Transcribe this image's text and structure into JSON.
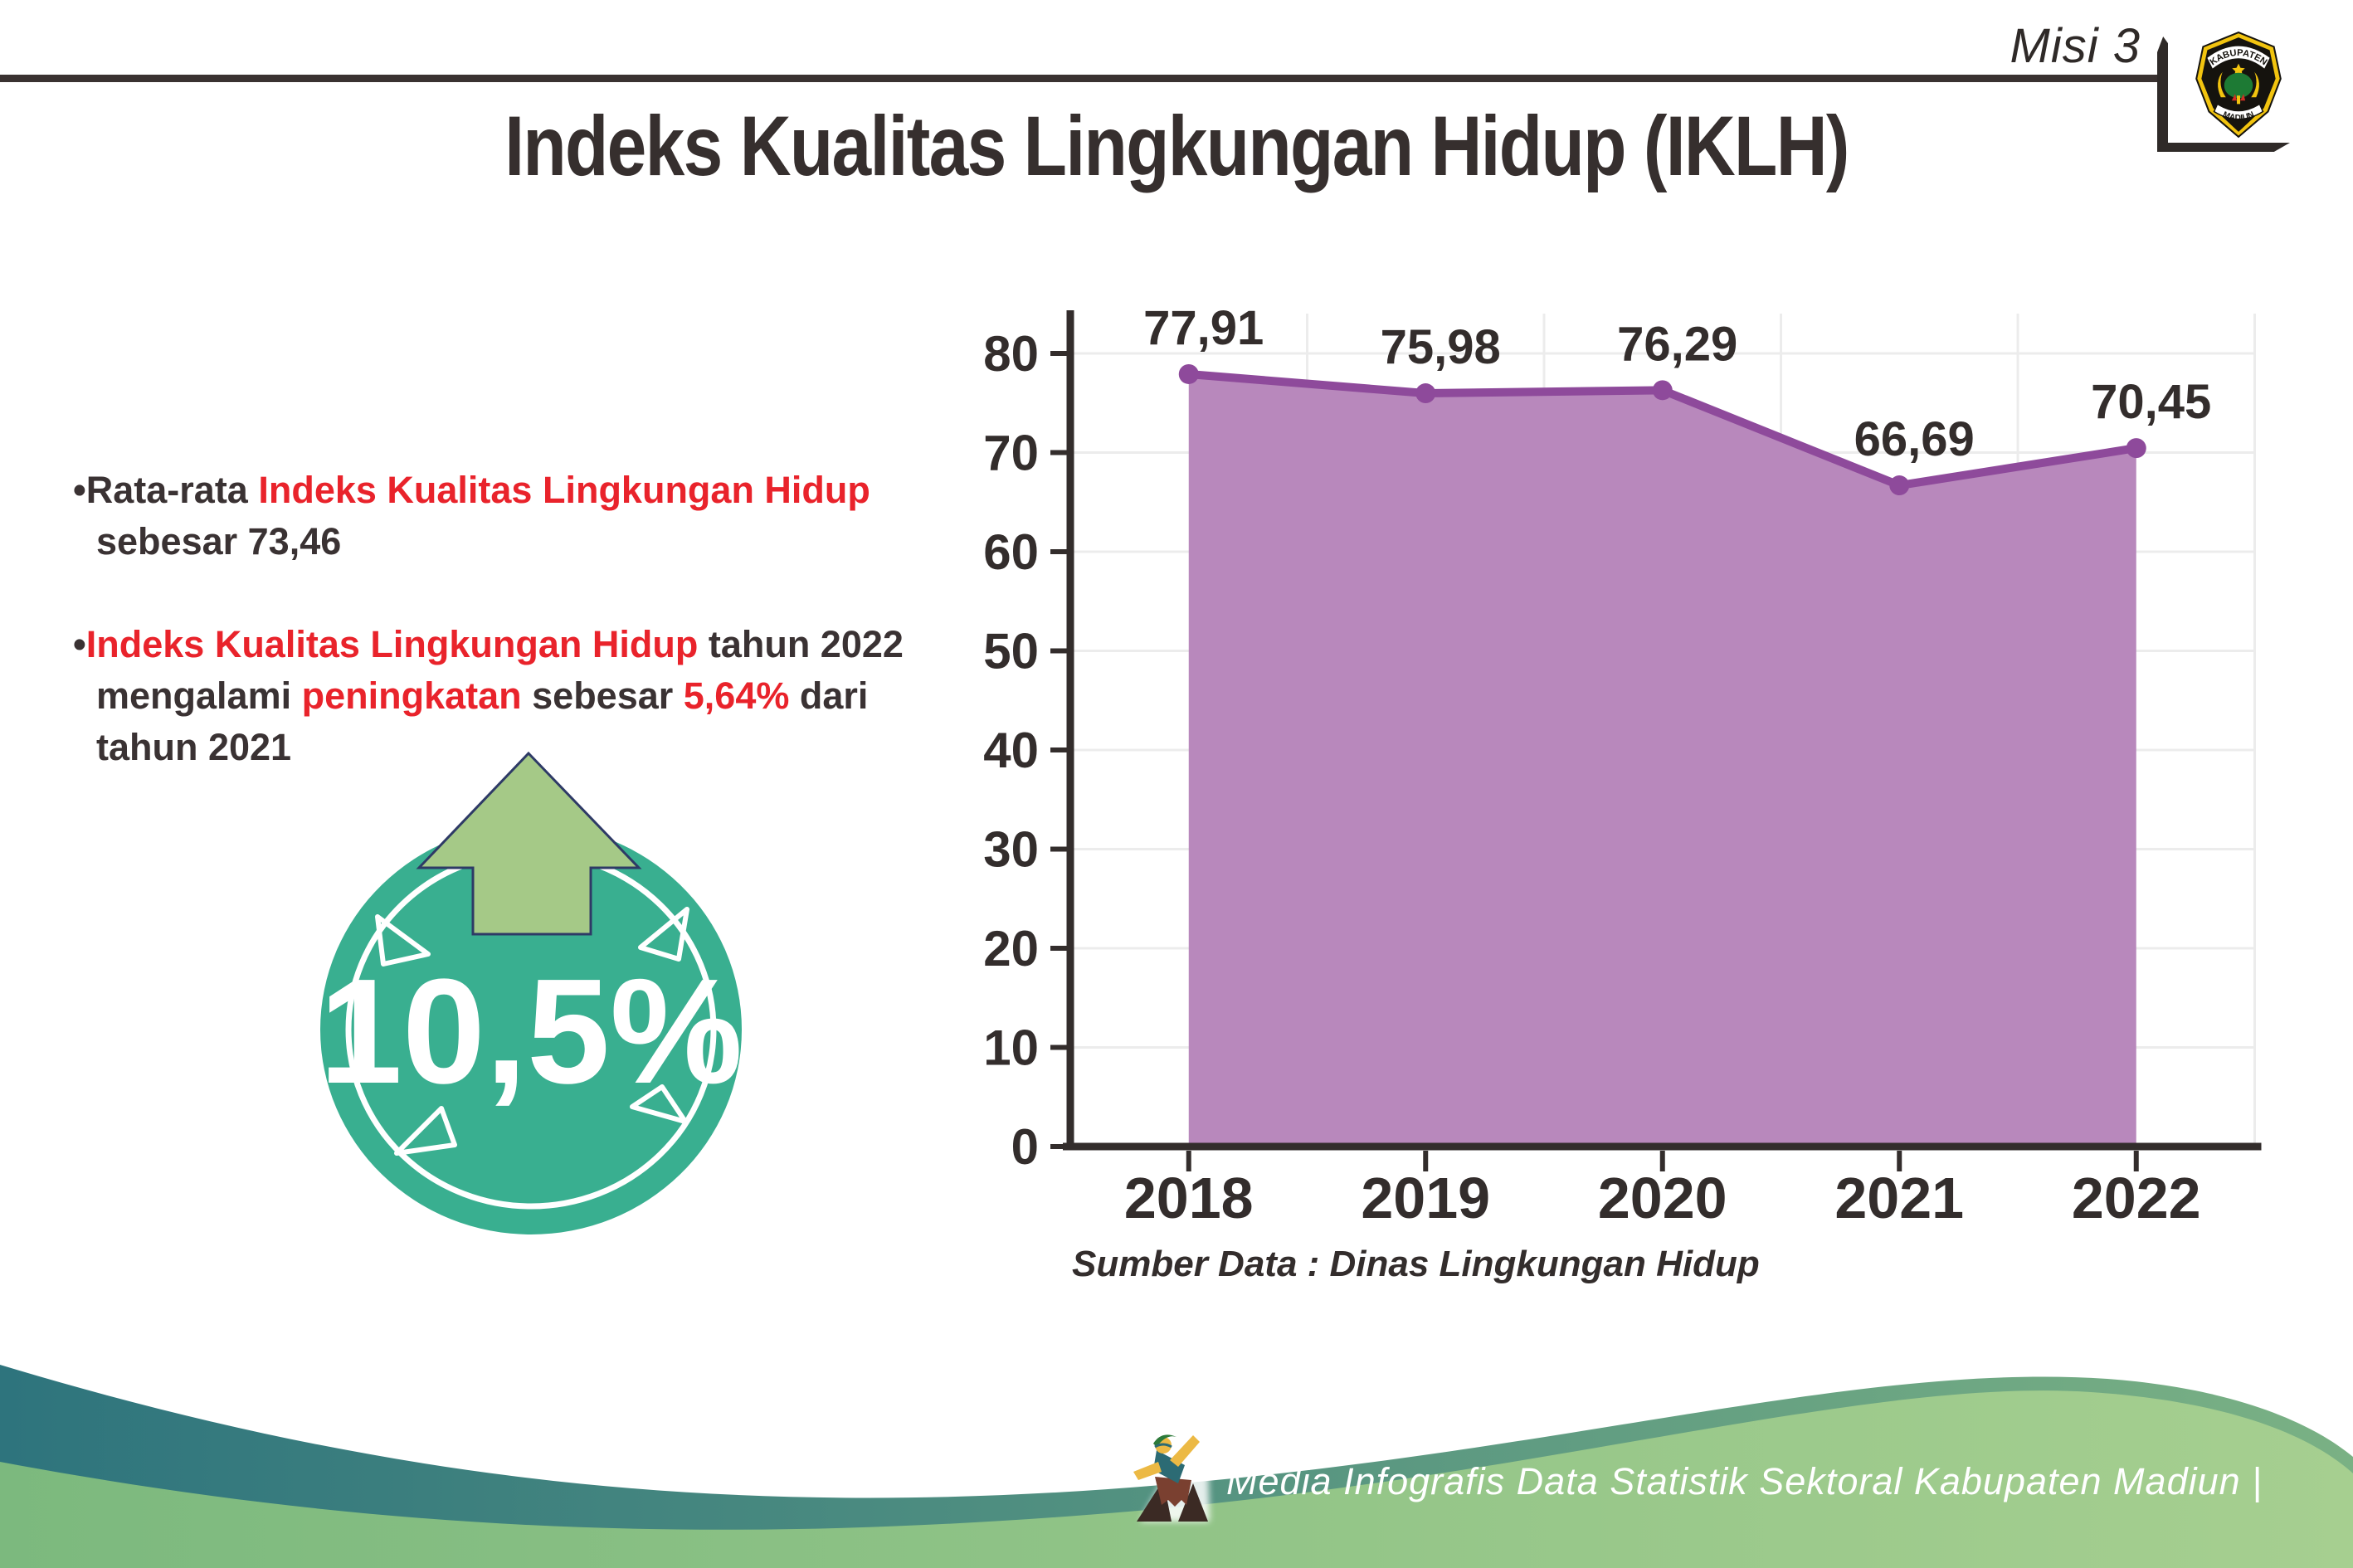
{
  "header": {
    "misi_label": "Misi 3",
    "title": "Indeks Kualitas Lingkungan Hidup (IKLH)"
  },
  "logo": {
    "name": "kabupaten-madiun-emblem",
    "top_text": "KABUPATEN",
    "bottom_text": "MADIUN"
  },
  "bullets": [
    {
      "segments": [
        {
          "text": "Rata-rata ",
          "red": false
        },
        {
          "text": "Indeks Kualitas Lingkungan Hidup",
          "red": true
        },
        {
          "text": " sebesar 73,46",
          "red": false
        }
      ]
    },
    {
      "segments": [
        {
          "text": "Indeks Kualitas Lingkungan Hidup",
          "red": true
        },
        {
          "text": " tahun 2022 mengalami ",
          "red": false
        },
        {
          "text": "peningkatan",
          "red": true
        },
        {
          "text": " sebesar ",
          "red": false
        },
        {
          "text": "5,64%",
          "red": true
        },
        {
          "text": " dari tahun 2021",
          "red": false
        }
      ]
    }
  ],
  "badge": {
    "value": "10,5%",
    "circle_color": "#39af90",
    "arrow_color": "#a5c987",
    "arrow_outline": "#2e3a66"
  },
  "chart_data": {
    "type": "area",
    "categories": [
      "2018",
      "2019",
      "2020",
      "2021",
      "2022"
    ],
    "values": [
      77.91,
      75.98,
      76.29,
      66.69,
      70.45
    ],
    "point_labels": [
      "77,91",
      "75,98",
      "76,29",
      "66,69",
      "70,45"
    ],
    "title": "",
    "xlabel": "",
    "ylabel": "",
    "ylim": [
      0,
      80
    ],
    "yticks": [
      0,
      10,
      20,
      30,
      40,
      50,
      60,
      70,
      80
    ],
    "grid": true,
    "legend": "none",
    "source_note": "Sumber Data : Dinas Lingkungan Hidup",
    "colors": {
      "area_fill": "#b888bc",
      "line": "#8e4a9b",
      "marker": "#8e4a9b",
      "axis": "#332d2c",
      "gridline": "#ececec",
      "label": "#332d2c"
    }
  },
  "footer": {
    "text": "Media Infografis Data Statistik Sektoral Kabupaten Madiun |",
    "wave_teal_left": "#2e747d",
    "wave_teal_right": "#7ab184",
    "wave_green_left": "#7cb97e",
    "wave_green_right": "#a6cf90"
  },
  "accent_colors": {
    "text_dark": "#372f2e",
    "text_red": "#e9232b"
  }
}
